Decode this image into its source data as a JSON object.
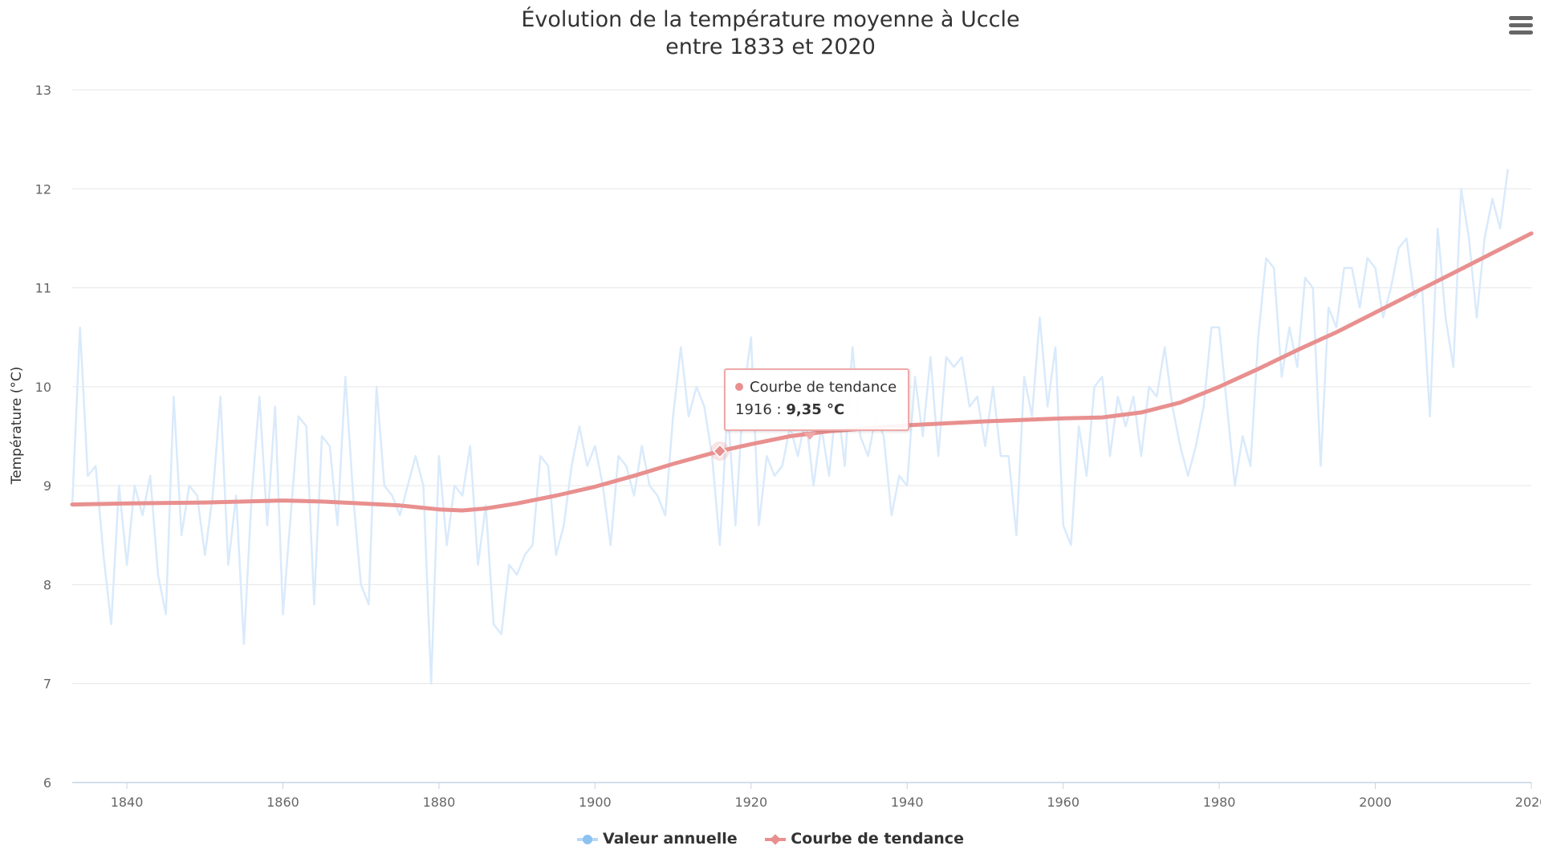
{
  "menu": {
    "icon": "hamburger-menu-icon"
  },
  "tooltip": {
    "series": "Courbe de tendance",
    "year_prefix": "1916 : ",
    "value": "9,35 °C"
  },
  "colors": {
    "annual": "#d9eafb",
    "trend": "#e8908f",
    "grid": "#e6e6e6"
  },
  "chart_data": {
    "type": "line",
    "title": "Évolution de la température moyenne à Uccle",
    "subtitle": "entre 1833 et 2020",
    "ylabel": "Température (°C)",
    "xlabel": "",
    "xlim": [
      1833,
      2020
    ],
    "ylim": [
      6,
      13
    ],
    "x_ticks": [
      1840,
      1860,
      1880,
      1900,
      1920,
      1940,
      1960,
      1980,
      2000,
      2020
    ],
    "y_ticks": [
      6,
      7,
      8,
      9,
      10,
      11,
      12,
      13
    ],
    "legend": "bottom-center",
    "grid": true,
    "highlight": {
      "series": "Courbe de tendance",
      "x": 1916,
      "y": 9.35
    },
    "series": [
      {
        "name": "Valeur annuelle",
        "color": "#d9eafb",
        "x_start": 1833,
        "values": [
          8.8,
          10.6,
          9.1,
          9.2,
          8.3,
          7.6,
          9.0,
          8.2,
          9.0,
          8.7,
          9.1,
          8.1,
          7.7,
          9.9,
          8.5,
          9.0,
          8.9,
          8.3,
          8.9,
          9.9,
          8.2,
          8.9,
          7.4,
          8.9,
          9.9,
          8.6,
          9.8,
          7.7,
          8.7,
          9.7,
          9.6,
          7.8,
          9.5,
          9.4,
          8.6,
          10.1,
          8.9,
          8.0,
          7.8,
          10.0,
          9.0,
          8.9,
          8.7,
          9.0,
          9.3,
          9.0,
          7.0,
          9.3,
          8.4,
          9.0,
          8.9,
          9.4,
          8.2,
          8.8,
          7.6,
          7.5,
          8.2,
          8.1,
          8.3,
          8.4,
          9.3,
          9.2,
          8.3,
          8.6,
          9.2,
          9.6,
          9.2,
          9.4,
          9.0,
          8.4,
          9.3,
          9.2,
          8.9,
          9.4,
          9.0,
          8.9,
          8.7,
          9.7,
          10.4,
          9.7,
          10.0,
          9.8,
          9.3,
          8.4,
          9.8,
          8.6,
          9.9,
          10.5,
          8.6,
          9.3,
          9.1,
          9.2,
          9.6,
          9.3,
          9.7,
          9.0,
          9.6,
          9.1,
          9.9,
          9.2,
          10.4,
          9.5,
          9.3,
          9.7,
          9.5,
          8.7,
          9.1,
          9.0,
          10.1,
          9.5,
          10.3,
          9.3,
          10.3,
          10.2,
          10.3,
          9.8,
          9.9,
          9.4,
          10.0,
          9.3,
          9.3,
          8.5,
          10.1,
          9.7,
          10.7,
          9.8,
          10.4,
          8.6,
          8.4,
          9.6,
          9.1,
          10.0,
          10.1,
          9.3,
          9.9,
          9.6,
          9.9,
          9.3,
          10.0,
          9.9,
          10.4,
          9.8,
          9.4,
          9.1,
          9.4,
          9.8,
          10.6,
          10.6,
          9.8,
          9.0,
          9.5,
          9.2,
          10.5,
          11.3,
          11.2,
          10.1,
          10.6,
          10.2,
          11.1,
          11.0,
          9.2,
          10.8,
          10.6,
          11.2,
          11.2,
          10.8,
          11.3,
          11.2,
          10.7,
          11.0,
          11.4,
          11.5,
          10.9,
          11.0,
          9.7,
          11.6,
          10.7,
          10.2,
          12.0,
          11.5,
          10.7,
          11.5,
          11.9,
          11.6,
          12.2
        ]
      },
      {
        "name": "Courbe de tendance",
        "color": "#e8908f",
        "x": [
          1833,
          1840,
          1850,
          1860,
          1865,
          1870,
          1875,
          1880,
          1883,
          1886,
          1890,
          1895,
          1900,
          1905,
          1910,
          1916,
          1920,
          1925,
          1930,
          1935,
          1940,
          1950,
          1960,
          1965,
          1970,
          1975,
          1980,
          1985,
          1990,
          1995,
          2000,
          2005,
          2010,
          2015,
          2020
        ],
        "values": [
          8.81,
          8.82,
          8.83,
          8.85,
          8.84,
          8.82,
          8.8,
          8.76,
          8.75,
          8.77,
          8.82,
          8.9,
          8.99,
          9.1,
          9.22,
          9.35,
          9.42,
          9.5,
          9.55,
          9.58,
          9.61,
          9.65,
          9.68,
          9.69,
          9.74,
          9.84,
          10.0,
          10.18,
          10.37,
          10.55,
          10.75,
          10.95,
          11.15,
          11.35,
          11.55
        ]
      }
    ]
  }
}
